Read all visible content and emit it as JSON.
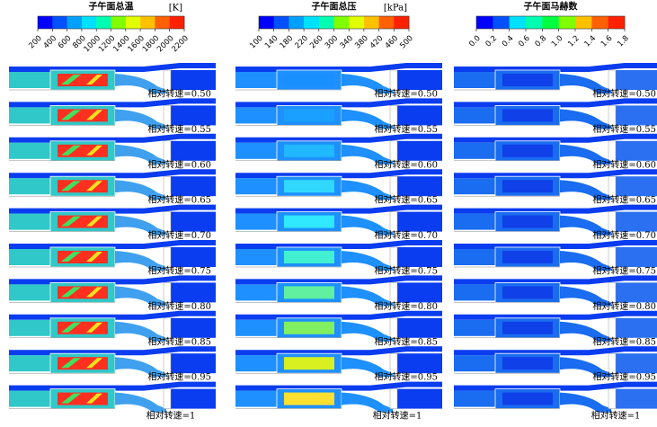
{
  "panels": [
    {
      "title": "子午面总温",
      "unit": "[K]",
      "ticks": [
        "200",
        "400",
        "600",
        "800",
        "1000",
        "1200",
        "1400",
        "1600",
        "1800",
        "2000",
        "2200"
      ],
      "row_labels": [
        "相对转速=0.50",
        "相对转速=0.55",
        "相对转速=0.60",
        "相对转速=0.65",
        "相对转速=0.70",
        "相对转速=0.75",
        "相对转速=0.80",
        "相对转速=0.85",
        "相对转速=0.95",
        "相对转速=1"
      ]
    },
    {
      "title": "子午面总压",
      "unit": "[kPa]",
      "ticks": [
        "100",
        "140",
        "180",
        "220",
        "260",
        "300",
        "340",
        "380",
        "420",
        "460",
        "500"
      ],
      "row_labels": [
        "相对转速=0.50",
        "相对转速=0.55",
        "相对转速=0.60",
        "相对转速=0.65",
        "相对转速=0.70",
        "相对转速=0.75",
        "相对转速=0.80",
        "相对转速=0.85",
        "相对转速=0.95",
        "相对转速=1"
      ]
    },
    {
      "title": "子午面马赫数",
      "ticks": [
        "0.0",
        "0.2",
        "0.4",
        "0.6",
        "0.8",
        "1.0",
        "1.2",
        "1.4",
        "1.6",
        "1.8"
      ],
      "row_labels": [
        "相对转速=0.50",
        "相对转速=0.55",
        "相对转速=0.60",
        "相对转速=0.65",
        "相对转速=0.70",
        "相对转速=0.75",
        "相对转速=0.80",
        "相对转速=0.85",
        "相对转速=0.95",
        "相对转速=1"
      ]
    }
  ]
}
